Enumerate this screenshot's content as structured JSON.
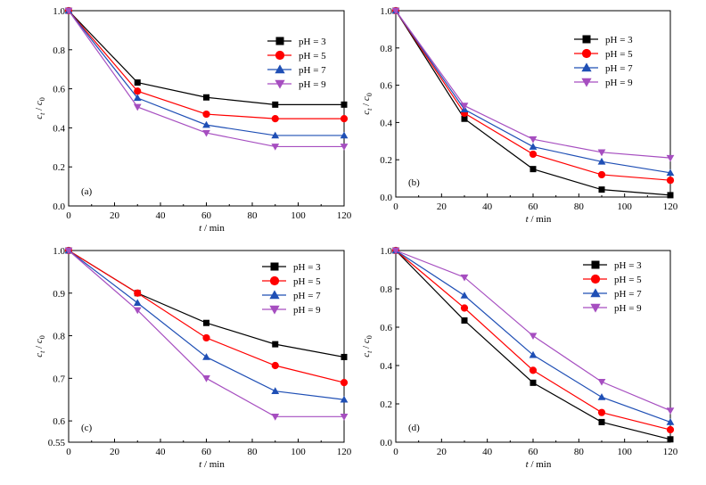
{
  "chart_data": [
    {
      "type": "line",
      "panel_label": "(a)",
      "xlabel_italic": "t",
      "xlabel_rest": " / min",
      "ylabel_c": "c",
      "ylabel_t": "t",
      "ylabel_sep": " / ",
      "ylabel_0": "0",
      "xlim": [
        0,
        120
      ],
      "ylim": [
        0.0,
        1.0
      ],
      "xticks": [
        "0",
        "20",
        "40",
        "60",
        "80",
        "100",
        "120"
      ],
      "yticks": [
        "0.0",
        "0.2",
        "0.4",
        "0.6",
        "0.8",
        "1.0"
      ],
      "x": [
        0,
        30,
        60,
        90,
        120
      ],
      "series": [
        {
          "name": "pH = 3",
          "values": [
            1.0,
            0.632,
            0.556,
            0.519,
            0.519
          ]
        },
        {
          "name": "pH = 5",
          "values": [
            1.0,
            0.588,
            0.47,
            0.447,
            0.447
          ]
        },
        {
          "name": "pH = 7",
          "values": [
            1.0,
            0.553,
            0.415,
            0.361,
            0.361
          ]
        },
        {
          "name": "pH = 9",
          "values": [
            1.0,
            0.507,
            0.374,
            0.304,
            0.304
          ]
        }
      ]
    },
    {
      "type": "line",
      "panel_label": "(b)",
      "xlabel_italic": "t",
      "xlabel_rest": " / min",
      "ylabel_c": "c",
      "ylabel_t": "t",
      "ylabel_sep": " / ",
      "ylabel_0": "0",
      "xlim": [
        0,
        120
      ],
      "ylim": [
        0.0,
        1.0
      ],
      "xticks": [
        "0",
        "20",
        "40",
        "60",
        "80",
        "100",
        "120"
      ],
      "yticks": [
        "0.0",
        "0.2",
        "0.4",
        "0.6",
        "0.8",
        "1.0"
      ],
      "x": [
        0,
        30,
        60,
        90,
        120
      ],
      "series": [
        {
          "name": "pH = 3",
          "values": [
            1.0,
            0.42,
            0.15,
            0.04,
            0.01
          ]
        },
        {
          "name": "pH = 5",
          "values": [
            1.0,
            0.45,
            0.23,
            0.12,
            0.09
          ]
        },
        {
          "name": "pH = 7",
          "values": [
            1.0,
            0.47,
            0.27,
            0.19,
            0.13
          ]
        },
        {
          "name": "pH = 9",
          "values": [
            1.0,
            0.49,
            0.31,
            0.24,
            0.21
          ]
        }
      ]
    },
    {
      "type": "line",
      "panel_label": "(c)",
      "xlabel_italic": "t",
      "xlabel_rest": " / min",
      "ylabel_c": "c",
      "ylabel_t": "t",
      "ylabel_sep": " / ",
      "ylabel_0": "0",
      "xlim": [
        0,
        120
      ],
      "ylim": [
        0.55,
        1.0
      ],
      "xticks": [
        "0",
        "20",
        "40",
        "60",
        "80",
        "100",
        "120"
      ],
      "yticks": [
        "0.55",
        "0.6",
        "0.7",
        "0.8",
        "0.9",
        "1.0"
      ],
      "ytick_values": [
        0.55,
        0.6,
        0.7,
        0.8,
        0.9,
        1.0
      ],
      "x": [
        0,
        30,
        60,
        90,
        120
      ],
      "series": [
        {
          "name": "pH = 3",
          "values": [
            1.0,
            0.9,
            0.83,
            0.78,
            0.75
          ]
        },
        {
          "name": "pH = 5",
          "values": [
            1.0,
            0.9,
            0.795,
            0.73,
            0.69
          ]
        },
        {
          "name": "pH = 7",
          "values": [
            1.0,
            0.877,
            0.75,
            0.67,
            0.65
          ]
        },
        {
          "name": "pH = 9",
          "values": [
            1.0,
            0.86,
            0.7,
            0.61,
            0.61
          ]
        }
      ]
    },
    {
      "type": "line",
      "panel_label": "(d)",
      "xlabel_italic": "t",
      "xlabel_rest": " / min",
      "ylabel_c": "c",
      "ylabel_t": "t",
      "ylabel_sep": " / ",
      "ylabel_0": "0",
      "xlim": [
        0,
        120
      ],
      "ylim": [
        0.0,
        1.0
      ],
      "xticks": [
        "0",
        "20",
        "40",
        "60",
        "80",
        "100",
        "120"
      ],
      "yticks": [
        "0.0",
        "0.2",
        "0.4",
        "0.6",
        "0.8",
        "1.0"
      ],
      "x": [
        0,
        30,
        60,
        90,
        120
      ],
      "series": [
        {
          "name": "pH = 3",
          "values": [
            1.0,
            0.635,
            0.31,
            0.105,
            0.015
          ]
        },
        {
          "name": "pH = 5",
          "values": [
            1.0,
            0.7,
            0.375,
            0.155,
            0.065
          ]
        },
        {
          "name": "pH = 7",
          "values": [
            1.0,
            0.765,
            0.455,
            0.235,
            0.105
          ]
        },
        {
          "name": "pH = 9",
          "values": [
            1.0,
            0.86,
            0.555,
            0.315,
            0.165
          ]
        }
      ]
    }
  ],
  "series_style": [
    {
      "color": "#000000",
      "marker": "square"
    },
    {
      "color": "#ff0000",
      "marker": "circle"
    },
    {
      "color": "#1f4fb5",
      "marker": "triangle-up"
    },
    {
      "color": "#a64ec0",
      "marker": "triangle-down"
    }
  ]
}
